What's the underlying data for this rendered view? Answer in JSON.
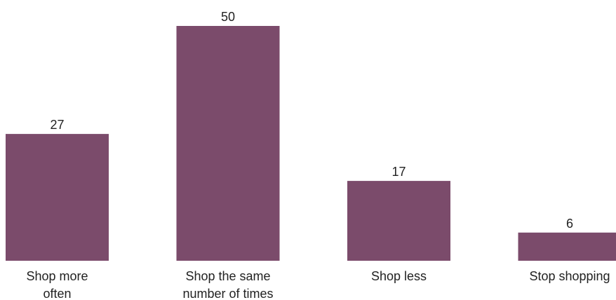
{
  "chart_data": {
    "type": "bar",
    "categories": [
      [
        "Shop more",
        "often"
      ],
      [
        "Shop the same",
        "number of times"
      ],
      [
        "Shop less"
      ],
      [
        "Stop shopping"
      ]
    ],
    "values": [
      27,
      50,
      17,
      6
    ],
    "title": "",
    "xlabel": "",
    "ylabel": "",
    "ylim": [
      0,
      50
    ],
    "grid": false,
    "legend": "none",
    "bar_color": "#7b4b6b"
  }
}
